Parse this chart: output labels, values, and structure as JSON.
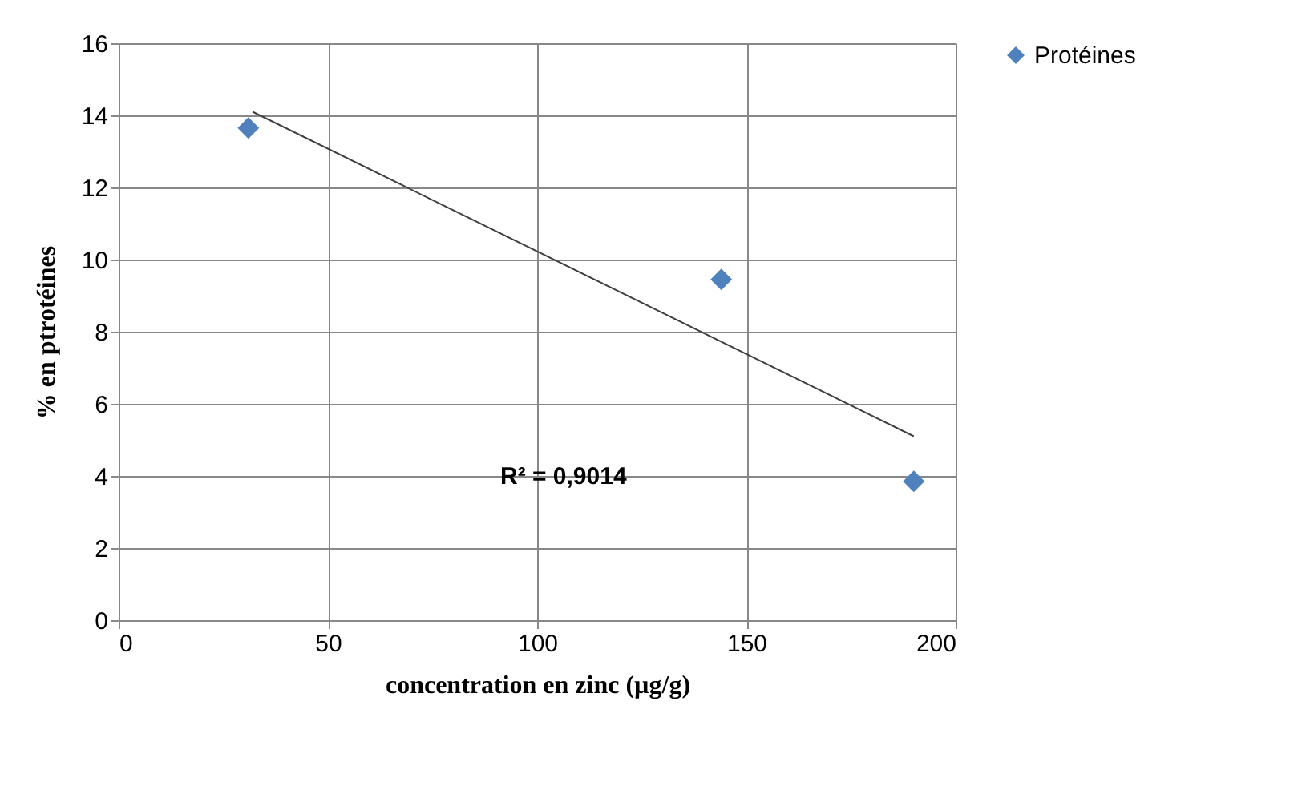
{
  "chart_data": {
    "type": "scatter",
    "xlabel": "concentration en zinc (µg/g)",
    "ylabel": "% en ptrotéines",
    "xlim": [
      0,
      200
    ],
    "xticks": [
      0,
      50,
      100,
      150,
      200
    ],
    "ylim": [
      0,
      16
    ],
    "yticks": [
      0,
      2,
      4,
      6,
      8,
      10,
      12,
      14,
      16
    ],
    "grid": true,
    "legend": "right",
    "marker": "diamond",
    "series": [
      {
        "name": "Protéines",
        "color": "#4f81bd",
        "x": [
          31,
          144,
          190
        ],
        "values": [
          13.65,
          9.45,
          3.85
        ]
      },
      {
        "type": "line",
        "color": "#404040",
        "marker": "none",
        "line_style": "solid",
        "x": [
          32,
          190
        ],
        "values": [
          14.1,
          5.1
        ]
      }
    ],
    "annotations": [
      "R² = 0,9014"
    ]
  }
}
